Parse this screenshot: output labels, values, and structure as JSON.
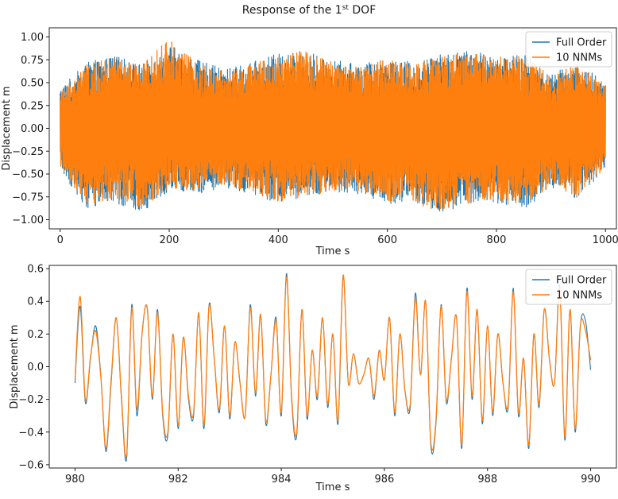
{
  "figure": {
    "title_prefix": "Response of the 1",
    "title_sup": "st",
    "title_suffix": " DOF",
    "colors": {
      "full_order": "#1f77b4",
      "nnm": "#ff7f0e"
    }
  },
  "chart_data": [
    {
      "type": "line",
      "xlabel": "Time s",
      "ylabel": "Displacement m",
      "xlim": [
        -20,
        1020
      ],
      "ylim": [
        -1.1,
        1.1
      ],
      "xticks": [
        0,
        200,
        400,
        600,
        800,
        1000
      ],
      "xtick_labels": [
        "0",
        "200",
        "400",
        "600",
        "800",
        "1000"
      ],
      "yticks": [
        -1.0,
        -0.75,
        -0.5,
        -0.25,
        0.0,
        0.25,
        0.5,
        0.75,
        1.0
      ],
      "ytick_labels": [
        "−1.00",
        "−0.75",
        "−0.50",
        "−0.25",
        "0.00",
        "0.25",
        "0.50",
        "0.75",
        "1.00"
      ],
      "legend": "top-right",
      "grid": false,
      "series": [
        {
          "name": "Full Order",
          "envelope_x": [
            0,
            50,
            100,
            150,
            200,
            250,
            300,
            350,
            400,
            450,
            500,
            550,
            600,
            650,
            700,
            750,
            800,
            850,
            900,
            950,
            1000
          ],
          "envelope_upper": [
            0.45,
            0.72,
            0.8,
            0.7,
            0.92,
            0.75,
            0.65,
            0.72,
            0.82,
            0.85,
            0.75,
            0.7,
            0.78,
            0.72,
            0.82,
            0.85,
            0.8,
            0.82,
            0.6,
            0.72,
            0.5
          ],
          "envelope_lower": [
            -0.45,
            -0.9,
            -0.82,
            -0.92,
            -0.68,
            -0.72,
            -0.65,
            -0.72,
            -0.82,
            -0.78,
            -0.7,
            -0.72,
            -0.82,
            -0.85,
            -0.92,
            -0.85,
            -0.82,
            -0.9,
            -0.65,
            -0.78,
            -0.45
          ]
        },
        {
          "name": "10 NNMs",
          "envelope_x": [
            0,
            50,
            100,
            150,
            200,
            250,
            300,
            350,
            400,
            450,
            500,
            550,
            600,
            650,
            700,
            750,
            800,
            850,
            900,
            950,
            1000
          ],
          "envelope_upper": [
            0.42,
            0.7,
            0.78,
            0.68,
            1.0,
            0.72,
            0.62,
            0.7,
            0.8,
            0.84,
            0.72,
            0.68,
            0.76,
            0.7,
            0.8,
            0.82,
            0.78,
            0.8,
            0.58,
            0.7,
            0.48
          ],
          "envelope_lower": [
            -0.42,
            -0.85,
            -0.78,
            -0.88,
            -0.65,
            -0.7,
            -0.62,
            -0.7,
            -0.8,
            -0.75,
            -0.68,
            -0.7,
            -0.8,
            -0.82,
            -0.94,
            -0.82,
            -0.8,
            -0.88,
            -0.62,
            -0.75,
            -0.42
          ]
        }
      ]
    },
    {
      "type": "line",
      "xlabel": "Time s",
      "ylabel": "Displacement m",
      "xlim": [
        979.5,
        990.5
      ],
      "ylim": [
        -0.62,
        0.62
      ],
      "xticks": [
        980,
        982,
        984,
        986,
        988,
        990
      ],
      "xtick_labels": [
        "980",
        "982",
        "984",
        "986",
        "988",
        "990"
      ],
      "yticks": [
        -0.6,
        -0.4,
        -0.2,
        0.0,
        0.2,
        0.4,
        0.6
      ],
      "ytick_labels": [
        "−0.6",
        "−0.4",
        "−0.2",
        "0.0",
        "0.2",
        "0.4",
        "0.6"
      ],
      "legend": "top-right",
      "grid": false,
      "x": [
        980.0,
        980.1,
        980.2,
        980.3,
        980.4,
        980.5,
        980.6,
        980.7,
        980.8,
        980.9,
        981.0,
        981.1,
        981.2,
        981.3,
        981.4,
        981.5,
        981.6,
        981.7,
        981.8,
        981.9,
        982.0,
        982.1,
        982.2,
        982.3,
        982.4,
        982.5,
        982.6,
        982.7,
        982.8,
        982.9,
        983.0,
        983.1,
        983.2,
        983.3,
        983.4,
        983.5,
        983.6,
        983.7,
        983.8,
        983.9,
        984.0,
        984.1,
        984.2,
        984.3,
        984.4,
        984.5,
        984.6,
        984.7,
        984.8,
        984.9,
        985.0,
        985.1,
        985.2,
        985.3,
        985.4,
        985.5,
        985.6,
        985.7,
        985.8,
        985.9,
        986.0,
        986.1,
        986.2,
        986.3,
        986.4,
        986.5,
        986.6,
        986.7,
        986.8,
        986.9,
        987.0,
        987.1,
        987.2,
        987.3,
        987.4,
        987.5,
        987.6,
        987.7,
        987.8,
        987.9,
        988.0,
        988.1,
        988.2,
        988.3,
        988.4,
        988.5,
        988.6,
        988.7,
        988.8,
        988.9,
        989.0,
        989.1,
        989.2,
        989.3,
        989.4,
        989.5,
        989.6,
        989.7,
        989.8,
        989.9,
        990.0
      ],
      "series": [
        {
          "name": "Full Order",
          "values": [
            -0.1,
            0.37,
            -0.22,
            0.05,
            0.25,
            -0.05,
            -0.52,
            -0.1,
            0.3,
            -0.2,
            -0.56,
            0.38,
            -0.3,
            0.2,
            0.36,
            -0.2,
            0.35,
            -0.3,
            -0.42,
            0.2,
            -0.38,
            0.18,
            -0.2,
            -0.3,
            0.33,
            -0.38,
            0.38,
            0.05,
            -0.28,
            0.25,
            -0.32,
            0.15,
            -0.1,
            -0.3,
            0.38,
            -0.18,
            0.32,
            -0.35,
            -0.05,
            0.3,
            -0.3,
            0.57,
            -0.2,
            -0.42,
            0.35,
            -0.32,
            0.1,
            -0.2,
            0.3,
            -0.25,
            0.2,
            -0.35,
            0.55,
            -0.1,
            0.08,
            -0.1,
            -0.05,
            0.05,
            -0.2,
            0.1,
            -0.08,
            0.3,
            -0.3,
            0.2,
            -0.15,
            -0.25,
            0.45,
            -0.05,
            0.4,
            -0.48,
            -0.35,
            0.38,
            -0.22,
            0.05,
            0.3,
            -0.5,
            0.48,
            -0.2,
            0.35,
            -0.35,
            0.25,
            -0.3,
            0.2,
            -0.1,
            -0.25,
            0.48,
            -0.3,
            0.05,
            -0.5,
            0.2,
            -0.25,
            0.35,
            0.05,
            -0.1,
            0.5,
            -0.45,
            0.35,
            -0.4,
            0.25,
            0.28,
            -0.02
          ]
        },
        {
          "name": "10 NNMs",
          "values": [
            -0.08,
            0.43,
            -0.2,
            0.06,
            0.22,
            -0.06,
            -0.5,
            -0.08,
            0.3,
            -0.18,
            -0.54,
            0.36,
            -0.26,
            0.2,
            0.36,
            -0.18,
            0.33,
            -0.28,
            -0.4,
            0.2,
            -0.36,
            0.18,
            -0.18,
            -0.28,
            0.33,
            -0.36,
            0.37,
            0.05,
            -0.26,
            0.25,
            -0.3,
            0.15,
            -0.1,
            -0.3,
            0.36,
            -0.16,
            0.32,
            -0.33,
            -0.05,
            0.28,
            -0.28,
            0.55,
            -0.18,
            -0.4,
            0.35,
            -0.3,
            0.1,
            -0.18,
            0.3,
            -0.23,
            0.2,
            -0.33,
            0.56,
            -0.1,
            0.08,
            -0.1,
            -0.05,
            0.05,
            -0.18,
            0.1,
            -0.08,
            0.3,
            -0.28,
            0.2,
            -0.15,
            -0.23,
            0.42,
            -0.05,
            0.4,
            -0.46,
            -0.33,
            0.37,
            -0.2,
            0.05,
            0.3,
            -0.48,
            0.46,
            -0.18,
            0.35,
            -0.33,
            0.25,
            -0.28,
            0.2,
            -0.1,
            -0.23,
            0.46,
            -0.28,
            0.05,
            -0.48,
            0.2,
            -0.23,
            0.35,
            0.05,
            -0.1,
            0.48,
            -0.43,
            0.35,
            -0.38,
            0.25,
            0.22,
            0.04
          ]
        }
      ]
    }
  ]
}
